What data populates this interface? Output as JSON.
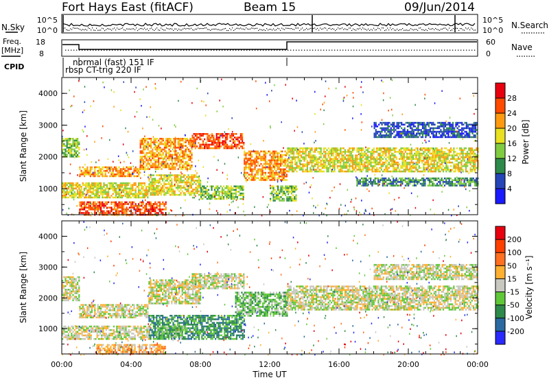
{
  "header": {
    "station": "Fort Hays East (fitACF)",
    "beam": "Beam 15",
    "date": "09/Jun/2014"
  },
  "noise_panel": {
    "left_label": "N.Sky",
    "right_label": "N.Search",
    "left_ticks": [
      "10^5",
      "10^0"
    ],
    "right_ticks": [
      "10^5",
      "10^0"
    ]
  },
  "freq_panel": {
    "label_line1": "Freq.",
    "label_line2": "[MHz]",
    "right_label": "Nave",
    "left_ticks": [
      "18",
      "8"
    ],
    "right_ticks": [
      "60",
      "0"
    ]
  },
  "cpid": {
    "label": "CPID",
    "modes": [
      "normal (fast) 151 IF",
      "rbsp CT-trig 220 IF"
    ]
  },
  "x_axis": {
    "label": "Time UT",
    "ticks": [
      "00:00",
      "04:00",
      "08:00",
      "12:00",
      "16:00",
      "20:00",
      "00:00"
    ]
  },
  "chart_data": [
    {
      "type": "heatmap",
      "name": "power",
      "ylabel": "Slant Range [km]",
      "yticks": [
        "1000",
        "2000",
        "3000",
        "4000"
      ],
      "ylim": [
        180,
        4500
      ],
      "xlim": [
        0,
        24
      ],
      "colorbar": {
        "label": "Power [dB]",
        "ticks": [
          "4",
          "8",
          "12",
          "16",
          "20",
          "24",
          "28"
        ],
        "colors": [
          "#1a1aff",
          "#2545b8",
          "#2e8a4a",
          "#80cc40",
          "#e8e020",
          "#ff9a10",
          "#ff4a00",
          "#e8000e"
        ]
      },
      "bands": [
        {
          "t": [
            0.0,
            1.0
          ],
          "r": [
            2000,
            2600
          ],
          "level": 3
        },
        {
          "t": [
            1.0,
            4.5
          ],
          "r": [
            1380,
            1700
          ],
          "level": 5
        },
        {
          "t": [
            4.5,
            7.5
          ],
          "r": [
            1600,
            2600
          ],
          "level": 5
        },
        {
          "t": [
            7.5,
            10.5
          ],
          "r": [
            2300,
            2750
          ],
          "level": 6
        },
        {
          "t": [
            10.5,
            13.0
          ],
          "r": [
            1300,
            2200
          ],
          "level": 5
        },
        {
          "t": [
            13.0,
            24.0
          ],
          "r": [
            1550,
            2300
          ],
          "level": 4
        },
        {
          "t": [
            0.0,
            1.0
          ],
          "r": [
            700,
            1200
          ],
          "level": 4
        },
        {
          "t": [
            1.0,
            5.0
          ],
          "r": [
            700,
            1200
          ],
          "level": 4
        },
        {
          "t": [
            5.0,
            8.0
          ],
          "r": [
            800,
            1450
          ],
          "level": 4
        },
        {
          "t": [
            8.0,
            10.5
          ],
          "r": [
            700,
            1100
          ],
          "level": 3
        },
        {
          "t": [
            12.0,
            13.5
          ],
          "r": [
            600,
            1100
          ],
          "level": 3
        },
        {
          "t": [
            17.0,
            24.0
          ],
          "r": [
            1100,
            1350
          ],
          "level": 2
        },
        {
          "t": [
            18.0,
            24.0
          ],
          "r": [
            2600,
            3100
          ],
          "level": 1
        },
        {
          "t": [
            1.0,
            6.0
          ],
          "r": [
            200,
            600
          ],
          "level": 6
        }
      ]
    },
    {
      "type": "heatmap",
      "name": "velocity",
      "ylabel": "Slant Range [km]",
      "yticks": [
        "1000",
        "2000",
        "3000",
        "4000"
      ],
      "ylim": [
        180,
        4500
      ],
      "xlim": [
        0,
        24
      ],
      "colorbar": {
        "label": "Velocity [m s⁻¹]",
        "ticks": [
          "200",
          "100",
          "50",
          "15",
          "-15",
          "-50",
          "-100",
          "-200"
        ],
        "colors": [
          "#2a2aff",
          "#2a6aa0",
          "#2e8a4a",
          "#60c838",
          "#c8c8c0",
          "#ffb030",
          "#ff7020",
          "#ff4000",
          "#e8000e"
        ]
      },
      "bands": [
        {
          "t": [
            0.0,
            1.0
          ],
          "r": [
            1900,
            2700
          ],
          "level": 4
        },
        {
          "t": [
            1.0,
            5.0
          ],
          "r": [
            1350,
            1800
          ],
          "level": 4
        },
        {
          "t": [
            5.0,
            8.0
          ],
          "r": [
            1800,
            2600
          ],
          "level": 4
        },
        {
          "t": [
            7.5,
            10.5
          ],
          "r": [
            2300,
            2800
          ],
          "level": 4
        },
        {
          "t": [
            10.0,
            13.0
          ],
          "r": [
            1400,
            2200
          ],
          "level": 3
        },
        {
          "t": [
            13.0,
            24.0
          ],
          "r": [
            1600,
            2400
          ],
          "level": 4
        },
        {
          "t": [
            5.0,
            10.5
          ],
          "r": [
            650,
            1450
          ],
          "level": 2
        },
        {
          "t": [
            5.5,
            7.0
          ],
          "r": [
            700,
            1100
          ],
          "level": 3
        },
        {
          "t": [
            0.0,
            5.0
          ],
          "r": [
            650,
            1100
          ],
          "level": 4
        },
        {
          "t": [
            18.0,
            24.0
          ],
          "r": [
            2600,
            3100
          ],
          "level": 4
        },
        {
          "t": [
            2.0,
            6.0
          ],
          "r": [
            200,
            500
          ],
          "level": 5
        }
      ]
    }
  ]
}
